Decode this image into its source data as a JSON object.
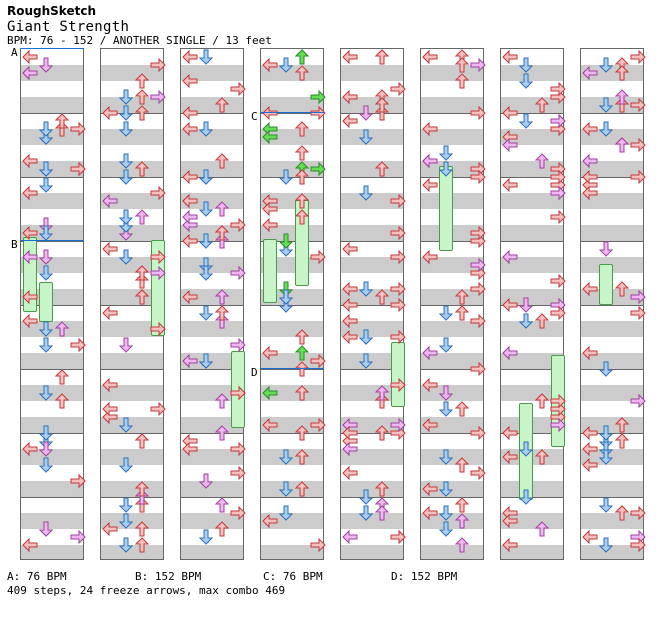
{
  "header": {
    "brand": "RoughSketch",
    "song_title": "Giant Strength",
    "info": "BPM: 76 - 152 / ANOTHER SINGLE / 13 feet"
  },
  "markers": [
    {
      "label": "A"
    },
    {
      "label": "B"
    },
    {
      "label": "C"
    },
    {
      "label": "D"
    }
  ],
  "footer": {
    "bpm_changes": [
      "A: 76 BPM",
      "B: 152 BPM",
      "C: 76 BPM",
      "D: 152 BPM"
    ],
    "summary": "409 steps, 24 freeze arrows, max combo 469"
  },
  "colors": {
    "left_right": "#f5c0c0",
    "down": "#a8d0f5",
    "up": "#f5c0c0",
    "alt": "#f0b8f0",
    "jump": "#66dd55",
    "freeze": "#c8f5c8",
    "bpm_line": "#1c6ed4"
  },
  "arrow_icons": [
    "left-arrow-icon",
    "down-arrow-icon",
    "up-arrow-icon",
    "right-arrow-icon"
  ]
}
